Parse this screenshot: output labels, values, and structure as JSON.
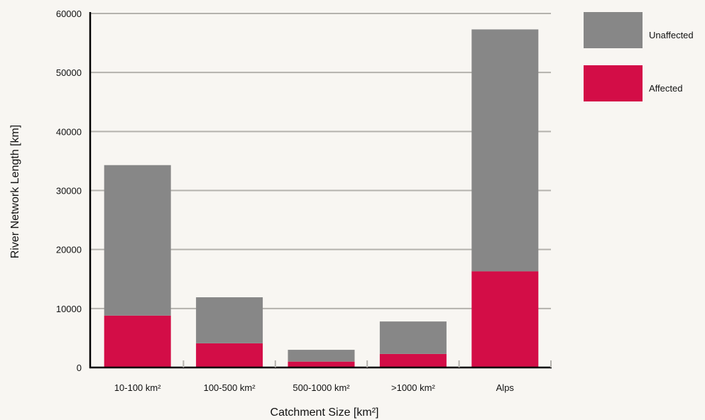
{
  "chart_data": {
    "type": "bar",
    "stacked": true,
    "categories": [
      "10-100 km²",
      "100-500 km²",
      "500-1000 km²",
      ">1000 km²",
      "Alps"
    ],
    "series": [
      {
        "name": "Affected",
        "values": [
          8800,
          4100,
          1000,
          2300,
          16300
        ],
        "color": "#d30d47"
      },
      {
        "name": "Unaffected",
        "values": [
          25500,
          7800,
          2000,
          5500,
          41000
        ],
        "color": "#878787"
      }
    ],
    "xlabel": "Catchment Size [km²]",
    "ylabel": "River Network Length [km]",
    "ylim": [
      0,
      60000
    ],
    "yticks": [
      0,
      10000,
      20000,
      30000,
      40000,
      50000,
      60000
    ],
    "grid": true,
    "legend_position": "top-right",
    "legend_order": [
      "Unaffected",
      "Affected"
    ],
    "colors": {
      "background": "#f8f6f2",
      "grid": "#b4b2ad",
      "axis": "#000000"
    }
  }
}
